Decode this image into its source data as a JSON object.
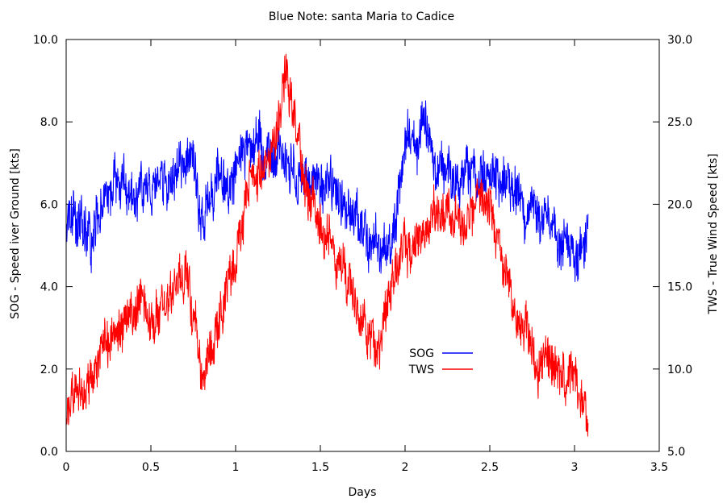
{
  "chart_data": {
    "type": "line",
    "title": "Blue Note: santa Maria to Cadice",
    "xlabel": "Days",
    "ylabel_left": "SOG - Speed iver Ground [kts]",
    "ylabel_right": "TWS - True Wind Speed [kts]",
    "xlim": [
      0,
      3.5
    ],
    "ylim_left": [
      0,
      10
    ],
    "ylim_right": [
      5,
      30
    ],
    "x_ticks": [
      "0",
      "0.5",
      "1",
      "1.5",
      "2",
      "2.5",
      "3",
      "3.5"
    ],
    "y_left_ticks": [
      "0.0",
      "2.0",
      "4.0",
      "6.0",
      "8.0",
      "10.0"
    ],
    "y_right_ticks": [
      "5.0",
      "10.0",
      "15.0",
      "20.0",
      "25.0",
      "30.0"
    ],
    "legend_placement": "center-right",
    "grid": false,
    "series": [
      {
        "name": "SOG",
        "axis": "left",
        "color": "#0000ff",
        "noise": 0.7,
        "x": [
          0,
          0.02,
          0.05,
          0.1,
          0.15,
          0.2,
          0.3,
          0.4,
          0.5,
          0.6,
          0.7,
          0.75,
          0.8,
          0.85,
          0.9,
          1.0,
          1.05,
          1.1,
          1.2,
          1.3,
          1.35,
          1.4,
          1.5,
          1.6,
          1.7,
          1.8,
          1.85,
          1.9,
          1.95,
          2.0,
          2.05,
          2.1,
          2.15,
          2.2,
          2.3,
          2.4,
          2.5,
          2.55,
          2.6,
          2.7,
          2.8,
          2.9,
          3.0,
          3.05,
          3.08
        ],
        "y": [
          5.0,
          5.5,
          5.8,
          5.2,
          5.0,
          6.0,
          6.5,
          6.2,
          6.3,
          6.5,
          7.0,
          7.2,
          5.5,
          6.0,
          6.5,
          6.8,
          7.2,
          7.5,
          7.3,
          7.2,
          6.8,
          6.5,
          6.5,
          6.3,
          5.5,
          5.0,
          4.8,
          4.9,
          5.5,
          7.5,
          7.8,
          8.2,
          7.0,
          6.8,
          6.5,
          6.6,
          6.8,
          6.5,
          6.5,
          6.0,
          5.5,
          5.3,
          4.8,
          5.0,
          5.2
        ]
      },
      {
        "name": "TWS",
        "axis": "right",
        "color": "#ff0000",
        "noise": 1.6,
        "x": [
          0,
          0.02,
          0.05,
          0.1,
          0.15,
          0.2,
          0.3,
          0.4,
          0.5,
          0.6,
          0.7,
          0.75,
          0.8,
          0.85,
          0.9,
          1.0,
          1.05,
          1.1,
          1.2,
          1.25,
          1.3,
          1.35,
          1.4,
          1.5,
          1.6,
          1.7,
          1.8,
          1.85,
          1.9,
          1.95,
          2.0,
          2.05,
          2.1,
          2.2,
          2.3,
          2.4,
          2.45,
          2.5,
          2.55,
          2.6,
          2.65,
          2.7,
          2.8,
          2.9,
          3.0,
          3.05,
          3.08
        ],
        "y": [
          6.5,
          7.5,
          9.0,
          8.5,
          9.5,
          11.0,
          12.5,
          13.5,
          13.0,
          14.0,
          16.0,
          13.0,
          9.5,
          11.0,
          13.0,
          17.0,
          20.0,
          21.0,
          23.0,
          26.0,
          28.0,
          25.0,
          21.0,
          19.0,
          17.0,
          14.0,
          12.0,
          11.0,
          15.0,
          16.0,
          17.0,
          17.5,
          18.5,
          20.0,
          19.0,
          19.5,
          20.5,
          19.5,
          17.5,
          16.0,
          13.5,
          12.0,
          10.5,
          10.0,
          9.5,
          8.0,
          6.5
        ]
      }
    ]
  }
}
